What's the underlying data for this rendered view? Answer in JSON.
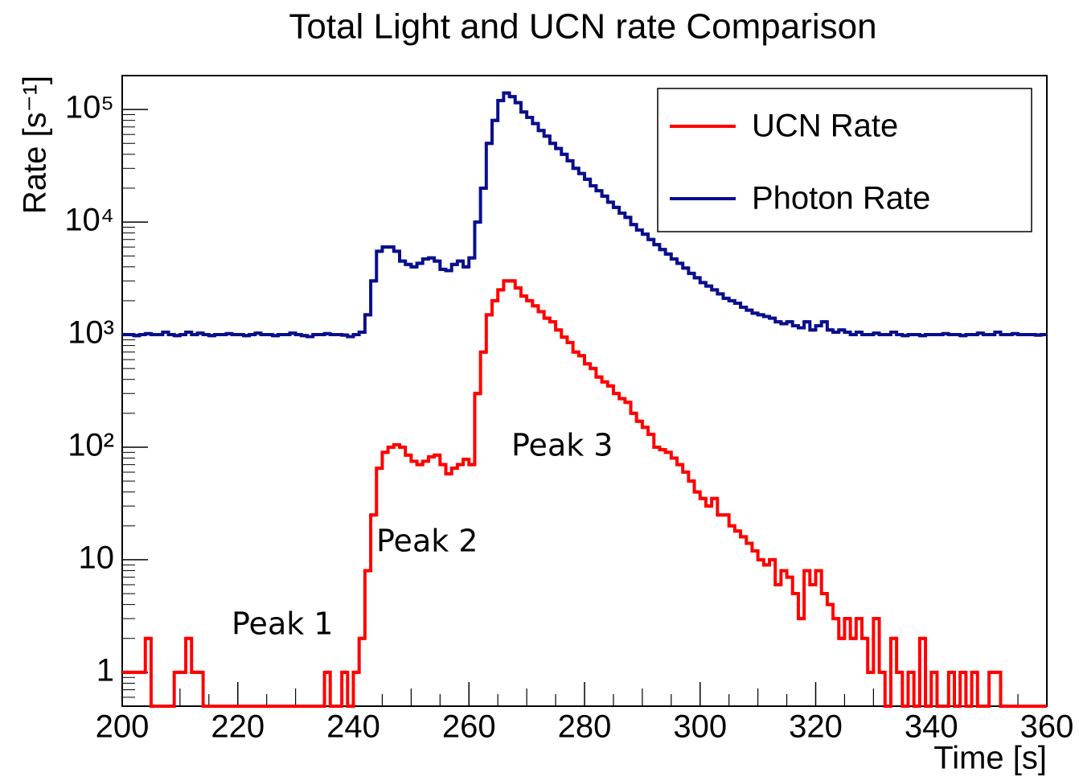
{
  "chart_data": {
    "type": "histogram",
    "title": "Total Light and UCN rate Comparison",
    "x_label": "Time [s]",
    "y_label": "Rate [s⁻¹]",
    "log_y": true,
    "legend": "top-right",
    "annotations": [
      "Peak 1",
      "Peak 2",
      "Peak 3"
    ],
    "xlim": [
      200,
      360
    ],
    "xticks": [
      200,
      220,
      240,
      260,
      280,
      300,
      320,
      340,
      360
    ],
    "ylim": [
      0.5,
      200000
    ],
    "yticks": [
      1,
      10,
      {
        "value": 100,
        "label": "10²"
      },
      {
        "value": 1000,
        "label": "10³"
      },
      {
        "value": 10000,
        "label": "10⁴"
      },
      {
        "value": 100000,
        "label": "10⁵"
      }
    ],
    "bins": [
      200,
      201,
      202,
      203,
      204,
      205,
      206,
      207,
      208,
      209,
      210,
      211,
      212,
      213,
      214,
      215,
      216,
      217,
      218,
      219,
      220,
      221,
      222,
      223,
      224,
      225,
      226,
      227,
      228,
      229,
      230,
      231,
      232,
      233,
      234,
      235,
      236,
      237,
      238,
      239,
      240,
      241,
      242,
      243,
      244,
      245,
      246,
      247,
      248,
      249,
      250,
      251,
      252,
      253,
      254,
      255,
      256,
      257,
      258,
      259,
      260,
      261,
      262,
      263,
      264,
      265,
      266,
      267,
      268,
      269,
      270,
      271,
      272,
      273,
      274,
      275,
      276,
      277,
      278,
      279,
      280,
      281,
      282,
      283,
      284,
      285,
      286,
      287,
      288,
      289,
      290,
      291,
      292,
      293,
      294,
      295,
      296,
      297,
      298,
      299,
      300,
      301,
      302,
      303,
      304,
      305,
      306,
      307,
      308,
      309,
      310,
      311,
      312,
      313,
      314,
      315,
      316,
      317,
      318,
      319,
      320,
      321,
      322,
      323,
      324,
      325,
      326,
      327,
      328,
      329,
      330,
      331,
      332,
      333,
      334,
      335,
      336,
      337,
      338,
      339,
      340,
      341,
      342,
      343,
      344,
      345,
      346,
      347,
      348,
      349,
      350,
      351,
      352,
      353,
      354,
      355,
      356,
      357,
      358,
      359,
      360
    ],
    "series": [
      {
        "name": "UCN Rate",
        "color": "#ff0000",
        "values": [
          1,
          1,
          1,
          1,
          2,
          0,
          0,
          0,
          0,
          1,
          1,
          2,
          1,
          1,
          0,
          0,
          0,
          0,
          0,
          0,
          0,
          0,
          0,
          0,
          0,
          0,
          0,
          0,
          0,
          0,
          0,
          0,
          0,
          0,
          0,
          1,
          0,
          0,
          1,
          0,
          1,
          2,
          8,
          25,
          65,
          90,
          100,
          105,
          100,
          85,
          75,
          70,
          75,
          82,
          85,
          70,
          58,
          65,
          70,
          78,
          70,
          300,
          700,
          1500,
          2000,
          2500,
          3000,
          3000,
          2600,
          2200,
          2000,
          1800,
          1600,
          1400,
          1300,
          1100,
          950,
          850,
          700,
          650,
          550,
          500,
          420,
          380,
          350,
          300,
          270,
          250,
          200,
          170,
          150,
          130,
          100,
          95,
          90,
          80,
          70,
          60,
          50,
          40,
          35,
          30,
          35,
          25,
          25,
          20,
          18,
          16,
          14,
          12,
          10,
          9,
          10,
          6,
          8,
          7,
          5,
          3,
          8,
          6,
          8,
          5,
          4,
          3,
          2,
          3,
          2,
          3,
          2,
          1,
          3,
          1,
          0,
          2,
          1,
          0,
          1,
          0,
          2,
          0,
          1,
          0,
          0,
          1,
          0,
          1,
          0,
          1,
          0,
          0,
          1,
          1,
          0,
          0,
          0,
          0,
          0,
          0,
          0,
          0
        ]
      },
      {
        "name": "Photon Rate",
        "color": "#0a0f8c",
        "values": [
          1000,
          1000,
          980,
          1000,
          1020,
          1000,
          1000,
          1050,
          1000,
          980,
          1000,
          1050,
          1000,
          1030,
          1000,
          980,
          1000,
          1000,
          1020,
          1000,
          1000,
          980,
          1000,
          1030,
          1000,
          1000,
          980,
          1000,
          1000,
          1030,
          1000,
          980,
          960,
          1000,
          1000,
          1020,
          1000,
          1000,
          990,
          960,
          1000,
          1050,
          1500,
          3000,
          5500,
          6000,
          6000,
          5500,
          4500,
          4200,
          4000,
          4300,
          4700,
          4800,
          4500,
          3800,
          3700,
          4200,
          4500,
          4000,
          4800,
          10000,
          20000,
          50000,
          80000,
          120000,
          140000,
          130000,
          115000,
          95000,
          85000,
          75000,
          65000,
          58000,
          50000,
          45000,
          40000,
          35000,
          30000,
          27000,
          24000,
          21000,
          19000,
          17000,
          15000,
          13500,
          12000,
          11000,
          9500,
          8500,
          7800,
          7000,
          6300,
          5700,
          5200,
          4700,
          4300,
          3900,
          3500,
          3200,
          2900,
          2700,
          2500,
          2300,
          2100,
          2000,
          1900,
          1750,
          1650,
          1550,
          1500,
          1450,
          1400,
          1300,
          1250,
          1300,
          1200,
          1150,
          1300,
          1100,
          1200,
          1300,
          1100,
          1050,
          1100,
          1050,
          1000,
          1050,
          1000,
          1000,
          1030,
          1000,
          1000,
          1050,
          1000,
          980,
          1000,
          1000,
          980,
          1000,
          1000,
          1000,
          1020,
          1000,
          1000,
          980,
          1000,
          1000,
          1030,
          1000,
          1000,
          1050,
          1000,
          1000,
          1020,
          1000,
          1000,
          1000,
          990,
          1000
        ]
      }
    ]
  }
}
